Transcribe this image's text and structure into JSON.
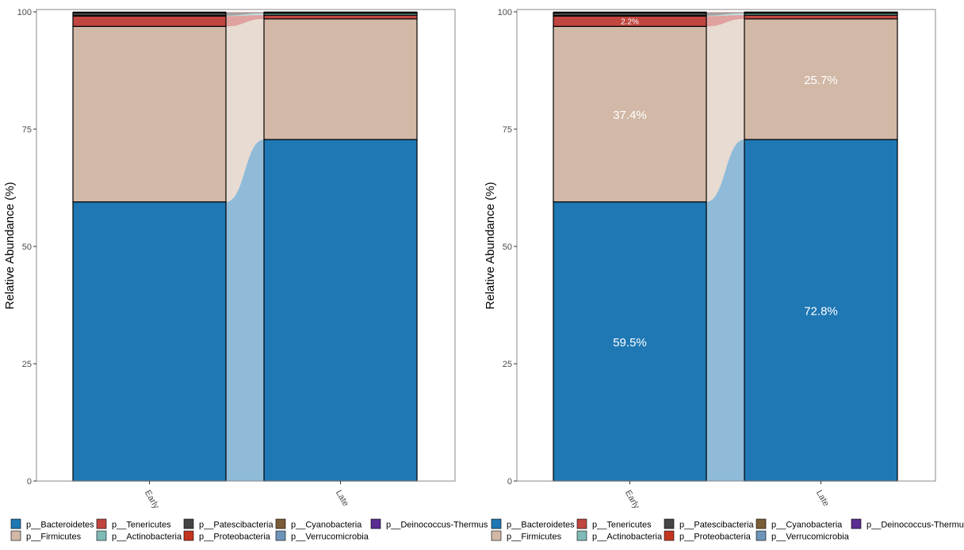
{
  "chart_data": [
    {
      "type": "bar",
      "stacked": true,
      "flows_between_bars": true,
      "show_labels": false,
      "categories": [
        "Early",
        "Late"
      ],
      "ylabel": "Relative Abundance (%)",
      "ylim": [
        0,
        100
      ],
      "yticks": [
        0,
        25,
        50,
        75,
        100
      ],
      "grid": false,
      "legend_position": "bottom",
      "series": [
        {
          "name": "p__Bacteroidetes",
          "color": "#1f78b4",
          "values": [
            59.5,
            72.8
          ]
        },
        {
          "name": "p__Firmicutes",
          "color": "#d2b8a6",
          "values": [
            37.4,
            25.7
          ]
        },
        {
          "name": "p__Tenericutes",
          "color": "#c0463f",
          "values": [
            2.2,
            0.8
          ]
        },
        {
          "name": "p__Actinobacteria",
          "color": "#7fbab7",
          "values": [
            0.1,
            0.4
          ]
        },
        {
          "name": "p__Patescibacteria",
          "color": "#444444",
          "values": [
            0.6,
            0.2
          ]
        },
        {
          "name": "p__Proteobacteria",
          "color": "#c43520",
          "values": [
            0.1,
            0.05
          ]
        },
        {
          "name": "p__Cyanobacteria",
          "color": "#7a5c37",
          "values": [
            0.05,
            0.02
          ]
        },
        {
          "name": "p__Verrucomicrobia",
          "color": "#6d94b8",
          "values": [
            0.03,
            0.02
          ]
        },
        {
          "name": "p__Deinococcus-Thermus",
          "color": "#5a2d91",
          "values": [
            0.02,
            0.01
          ]
        }
      ]
    },
    {
      "type": "bar",
      "stacked": true,
      "flows_between_bars": true,
      "show_labels": true,
      "data_labels": {
        "Early": [
          "59.5%",
          "37.4%",
          "2.2%"
        ],
        "Late": [
          "72.8%",
          "25.7%"
        ]
      },
      "categories": [
        "Early",
        "Late"
      ],
      "ylabel": "Relative Abundance (%)",
      "ylim": [
        0,
        100
      ],
      "yticks": [
        0,
        25,
        50,
        75,
        100
      ],
      "grid": false,
      "legend_position": "bottom",
      "series": [
        {
          "name": "p__Bacteroidetes",
          "color": "#1f78b4",
          "values": [
            59.5,
            72.8
          ]
        },
        {
          "name": "p__Firmicutes",
          "color": "#d2b8a6",
          "values": [
            37.4,
            25.7
          ]
        },
        {
          "name": "p__Tenericutes",
          "color": "#c0463f",
          "values": [
            2.2,
            0.8
          ]
        },
        {
          "name": "p__Actinobacteria",
          "color": "#7fbab7",
          "values": [
            0.1,
            0.4
          ]
        },
        {
          "name": "p__Patescibacteria",
          "color": "#444444",
          "values": [
            0.6,
            0.2
          ]
        },
        {
          "name": "p__Proteobacteria",
          "color": "#c43520",
          "values": [
            0.1,
            0.05
          ]
        },
        {
          "name": "p__Cyanobacteria",
          "color": "#7a5c37",
          "values": [
            0.05,
            0.02
          ]
        },
        {
          "name": "p__Verrucomicrobia",
          "color": "#6d94b8",
          "values": [
            0.03,
            0.02
          ]
        },
        {
          "name": "p__Deinococcus-Thermus",
          "color": "#5a2d91",
          "values": [
            0.02,
            0.01
          ]
        }
      ]
    }
  ]
}
